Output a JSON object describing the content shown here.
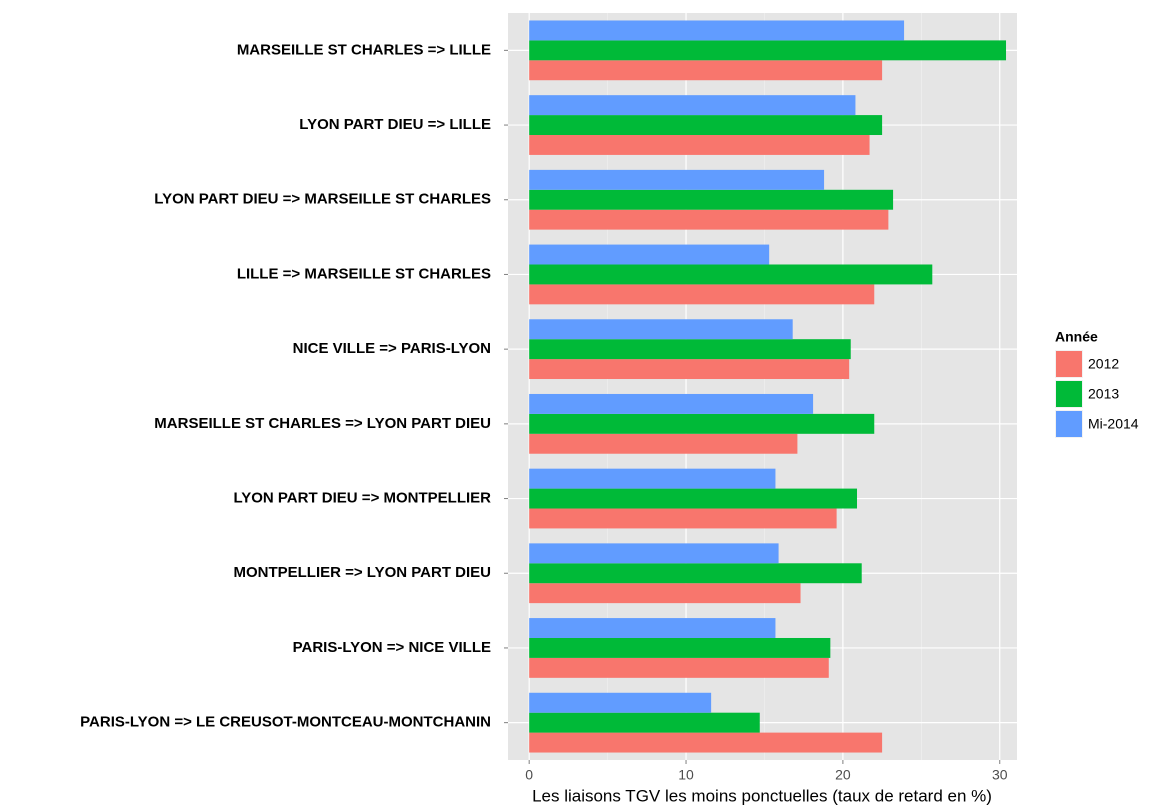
{
  "chart_data": {
    "type": "bar",
    "orientation": "horizontal",
    "x_label": "Les liaisons TGV les moins ponctuelles (taux de retard en %)",
    "categories": [
      "MARSEILLE ST CHARLES  =>  LILLE",
      "LYON PART DIEU  =>  LILLE",
      "LYON PART DIEU  =>  MARSEILLE ST CHARLES",
      "LILLE  =>  MARSEILLE ST CHARLES",
      "NICE VILLE  =>  PARIS-LYON",
      "MARSEILLE ST CHARLES  =>  LYON PART DIEU",
      "LYON PART DIEU  =>  MONTPELLIER",
      "MONTPELLIER  =>  LYON PART DIEU",
      "PARIS-LYON  =>  NICE VILLE",
      "PARIS-LYON  =>  LE CREUSOT-MONTCEAU-MONTCHANIN"
    ],
    "legend_title": "Année",
    "series": [
      {
        "name": "2012",
        "color": "#F8766D",
        "values": [
          22.5,
          21.7,
          22.9,
          22.0,
          20.4,
          17.1,
          19.6,
          17.3,
          19.1,
          22.5
        ]
      },
      {
        "name": "2013",
        "color": "#00BA38",
        "values": [
          30.4,
          22.5,
          23.2,
          25.7,
          20.5,
          22.0,
          20.9,
          21.2,
          19.2,
          14.7
        ]
      },
      {
        "name": "Mi-2014",
        "color": "#619CFF",
        "values": [
          23.9,
          20.8,
          18.8,
          15.3,
          16.8,
          18.1,
          15.7,
          15.9,
          15.7,
          11.6
        ]
      }
    ],
    "xlim": [
      -1.35,
      31.1
    ],
    "xticks": [
      0,
      10,
      20,
      30
    ],
    "grid": true,
    "legend_position": "right"
  }
}
